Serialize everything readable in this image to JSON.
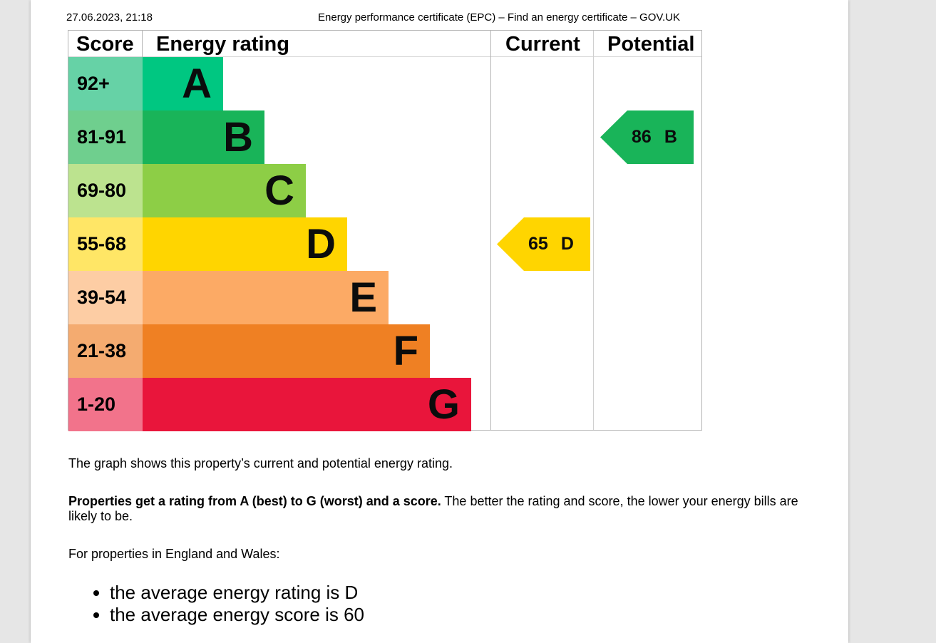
{
  "header": {
    "datetime": "27.06.2023, 21:18",
    "title": "Energy performance certificate (EPC) – Find an energy certificate – GOV.UK"
  },
  "epc": {
    "headers": {
      "score": "Score",
      "energy_rating": "Energy rating",
      "current": "Current",
      "potential": "Potential"
    },
    "bands": [
      {
        "score": "92+",
        "letter": "A",
        "color": "#00c781",
        "score_bg": "#66d2a6"
      },
      {
        "score": "81-91",
        "letter": "B",
        "color": "#19b459",
        "score_bg": "#6fcf8e"
      },
      {
        "score": "69-80",
        "letter": "C",
        "color": "#8dce46",
        "score_bg": "#bce38f"
      },
      {
        "score": "55-68",
        "letter": "D",
        "color": "#ffd500",
        "score_bg": "#ffe666"
      },
      {
        "score": "39-54",
        "letter": "E",
        "color": "#fcaa65",
        "score_bg": "#fdcda4"
      },
      {
        "score": "21-38",
        "letter": "F",
        "color": "#ef8023",
        "score_bg": "#f4ab70"
      },
      {
        "score": "1-20",
        "letter": "G",
        "color": "#e9153b",
        "score_bg": "#f2738b"
      }
    ],
    "current": {
      "score": "65",
      "letter": "D",
      "color": "#ffd500"
    },
    "potential": {
      "score": "86",
      "letter": "B",
      "color": "#19b459"
    }
  },
  "text": {
    "p1": "The graph shows this property’s current and potential energy rating.",
    "p2_bold": "Properties get a rating from A (best) to G (worst) and a score.",
    "p2_rest": " The better the rating and score, the lower your energy bills are likely to be.",
    "p3": "For properties in England and Wales:",
    "bullets": [
      "the average energy rating is D",
      "the average energy score is 60"
    ]
  }
}
